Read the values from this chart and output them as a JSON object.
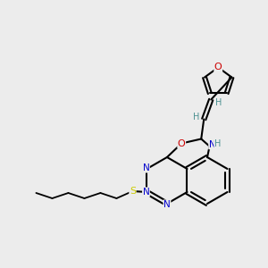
{
  "bg_color": "#ececec",
  "atom_colors": {
    "O": "#cc0000",
    "N": "#0000cc",
    "S": "#cccc00",
    "C": "#000000",
    "H": "#4a9090"
  },
  "bond_color": "#000000",
  "figsize": [
    3.0,
    3.0
  ],
  "dpi": 100
}
